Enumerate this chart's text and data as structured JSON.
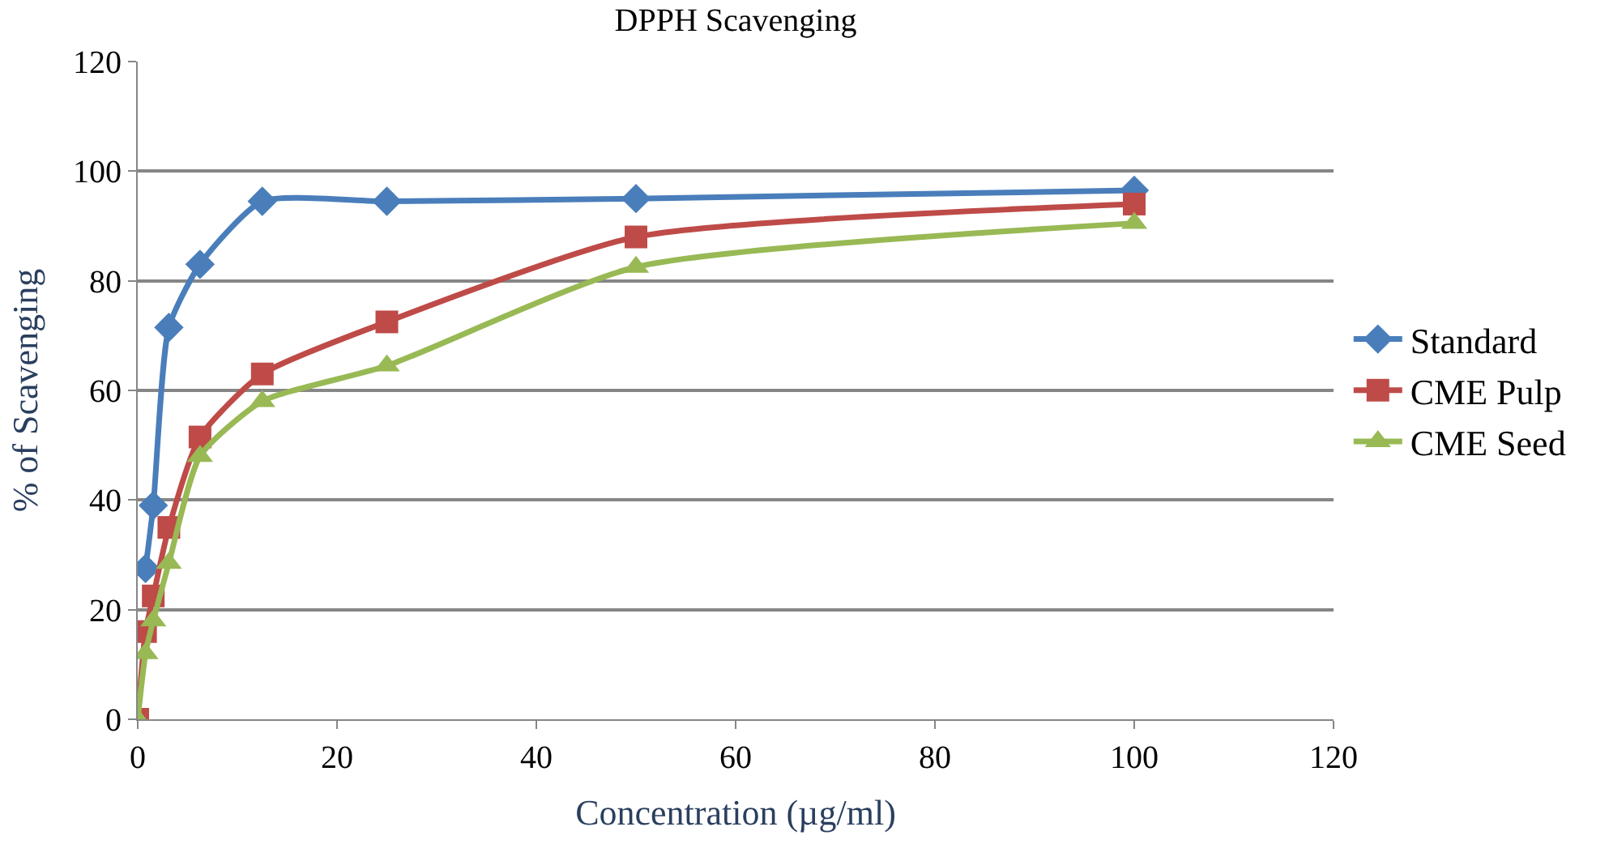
{
  "chart_data": {
    "type": "line",
    "title": "DPPH Scavenging",
    "xlabel": "Concentration (µg/ml)",
    "ylabel": "% of Scavenging",
    "xlim": [
      0,
      120
    ],
    "xticks": [
      0,
      20,
      40,
      60,
      80,
      100,
      120
    ],
    "ylim": [
      0,
      120
    ],
    "yticks": [
      0,
      20,
      40,
      60,
      80,
      100,
      120
    ],
    "grid": "y",
    "legend": "right",
    "line_style": "solid",
    "series": [
      {
        "name": "Standard",
        "color": "#4a7ebb",
        "marker": "diamond",
        "x": [
          0.78,
          1.56,
          3.125,
          6.25,
          12.5,
          25,
          50,
          100
        ],
        "values": [
          27.5,
          39,
          71.5,
          83,
          94.5,
          94.5,
          95,
          96.5
        ]
      },
      {
        "name": "CME Pulp",
        "color": "#be4b48",
        "marker": "square",
        "x": [
          0,
          0.78,
          1.56,
          3.125,
          6.25,
          12.5,
          25,
          50,
          100
        ],
        "values": [
          0,
          16,
          22.5,
          35,
          51.5,
          63,
          72.5,
          88,
          94
        ]
      },
      {
        "name": "CME Seed",
        "color": "#98b954",
        "marker": "triangle",
        "x": [
          0,
          0.78,
          1.56,
          3.125,
          6.25,
          12.5,
          25,
          50,
          100
        ],
        "values": [
          0,
          12,
          18,
          28.5,
          48,
          58,
          64.5,
          82.5,
          90.5
        ]
      }
    ]
  }
}
